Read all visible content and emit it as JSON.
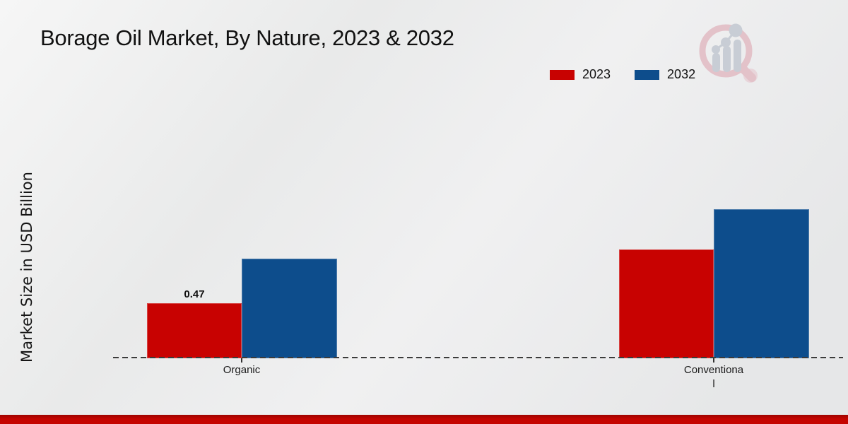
{
  "chart_data": {
    "type": "bar",
    "title": "Borage Oil Market, By Nature, 2023 & 2032",
    "ylabel": "Market Size in USD Billion",
    "categories": [
      "Organic",
      "Conventional"
    ],
    "x_tick_display": [
      "Organic",
      "Conventiona\nl"
    ],
    "series": [
      {
        "name": "2023",
        "color": "#c80201",
        "values": [
          0.47,
          0.93
        ]
      },
      {
        "name": "2032",
        "color": "#0d4d8c",
        "values": [
          0.85,
          1.27
        ]
      }
    ],
    "value_labels": [
      {
        "category": "Organic",
        "series": "2023",
        "text": "0.47"
      }
    ],
    "ylim": [
      0,
      1.5
    ],
    "grid": false,
    "legend_position": "top-right",
    "baseline_style": "dashed"
  },
  "branding": {
    "logo_icon": "magnifier-bar-chart-logo",
    "logo_ring_color": "#e3c0c8",
    "logo_bars_color": "#c7ccd4",
    "footer_bar_color": "#c50400"
  }
}
